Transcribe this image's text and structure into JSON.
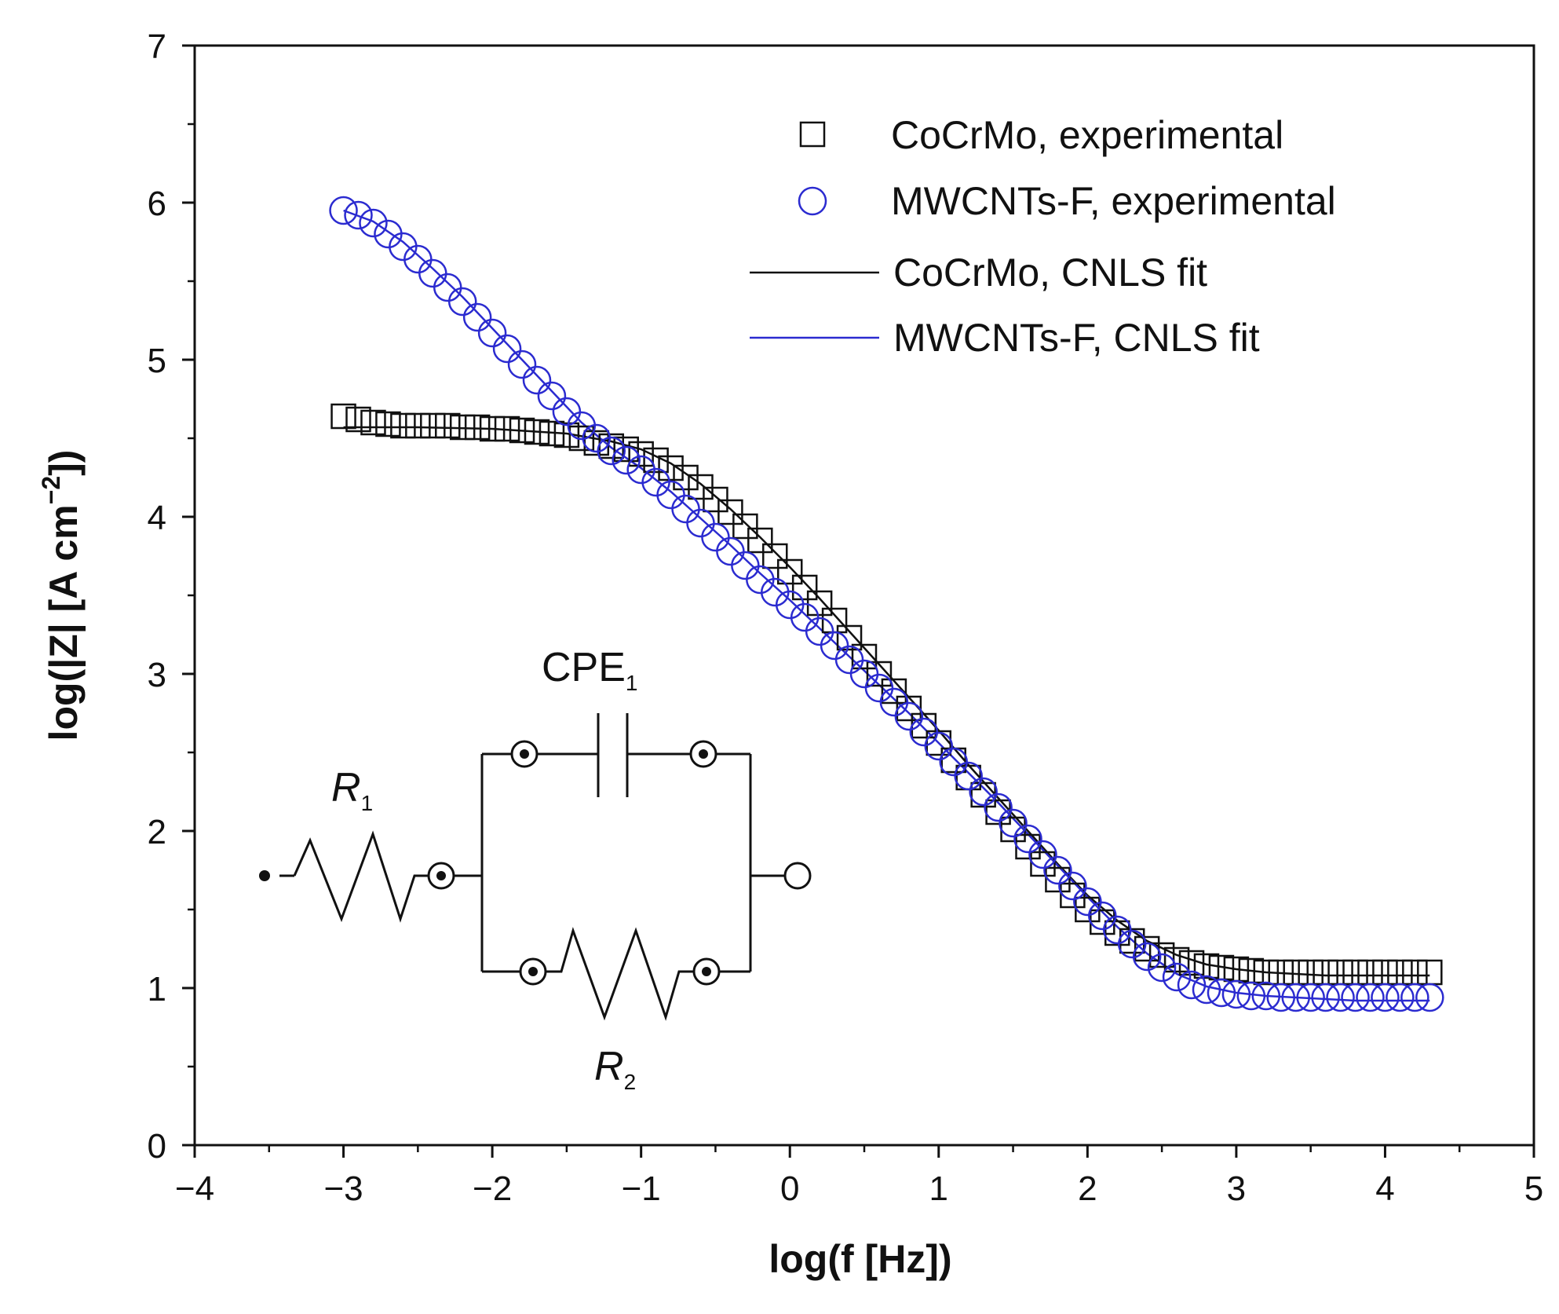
{
  "chart_data": {
    "type": "scatter",
    "xlabel": "log(f [Hz])",
    "ylabel_parts": [
      "log(|Z| [A cm",
      "−2",
      "])"
    ],
    "xlim": [
      -4,
      5
    ],
    "ylim": [
      0,
      7
    ],
    "x_ticks": [
      -4,
      -3,
      -2,
      -1,
      0,
      1,
      2,
      3,
      4,
      5
    ],
    "x_tick_labels": [
      "−4",
      "−3",
      "−2",
      "−1",
      "0",
      "1",
      "2",
      "3",
      "4",
      "5"
    ],
    "y_ticks": [
      0,
      1,
      2,
      3,
      4,
      5,
      6,
      7
    ],
    "y_tick_labels": [
      "0",
      "1",
      "2",
      "3",
      "4",
      "5",
      "6",
      "7"
    ],
    "grid": false,
    "legend_position": "top-right",
    "legend": [
      {
        "label": "CoCrMo, experimental",
        "marker": "square"
      },
      {
        "label": "MWCNTs-F, experimental",
        "marker": "circle"
      },
      {
        "label": "CoCrMo, CNLS fit",
        "marker": "line"
      },
      {
        "label": "MWCNTs-F, CNLS fit",
        "marker": "line"
      }
    ],
    "colors": {
      "cocrmo": "#111111",
      "mwcnts": "#2b2bd0"
    },
    "series": [
      {
        "name": "CoCrMo, experimental",
        "kind": "markers-square",
        "color": "#111111",
        "x": [
          -3.0,
          -2.9,
          -2.8,
          -2.7,
          -2.6,
          -2.5,
          -2.4,
          -2.3,
          -2.2,
          -2.1,
          -2.0,
          -1.9,
          -1.8,
          -1.7,
          -1.6,
          -1.5,
          -1.4,
          -1.3,
          -1.2,
          -1.1,
          -1.0,
          -0.9,
          -0.8,
          -0.7,
          -0.6,
          -0.5,
          -0.4,
          -0.3,
          -0.2,
          -0.1,
          0.0,
          0.1,
          0.2,
          0.3,
          0.4,
          0.5,
          0.6,
          0.7,
          0.8,
          0.9,
          1.0,
          1.1,
          1.2,
          1.3,
          1.4,
          1.5,
          1.6,
          1.7,
          1.8,
          1.9,
          2.0,
          2.1,
          2.2,
          2.3,
          2.4,
          2.5,
          2.6,
          2.7,
          2.8,
          2.9,
          3.0,
          3.1,
          3.2,
          3.3,
          3.4,
          3.5,
          3.6,
          3.7,
          3.8,
          3.9,
          4.0,
          4.1,
          4.2,
          4.3
        ],
        "y": [
          4.64,
          4.62,
          4.6,
          4.59,
          4.58,
          4.58,
          4.58,
          4.58,
          4.57,
          4.57,
          4.56,
          4.56,
          4.55,
          4.54,
          4.53,
          4.52,
          4.5,
          4.47,
          4.45,
          4.43,
          4.4,
          4.36,
          4.31,
          4.25,
          4.19,
          4.11,
          4.03,
          3.94,
          3.85,
          3.75,
          3.65,
          3.55,
          3.45,
          3.34,
          3.23,
          3.11,
          3.0,
          2.89,
          2.78,
          2.67,
          2.56,
          2.45,
          2.34,
          2.23,
          2.12,
          2.01,
          1.9,
          1.79,
          1.69,
          1.59,
          1.5,
          1.42,
          1.35,
          1.3,
          1.25,
          1.21,
          1.18,
          1.16,
          1.14,
          1.13,
          1.12,
          1.11,
          1.1,
          1.1,
          1.1,
          1.1,
          1.1,
          1.1,
          1.1,
          1.1,
          1.1,
          1.1,
          1.1,
          1.1
        ]
      },
      {
        "name": "MWCNTs-F, experimental",
        "kind": "markers-circle",
        "color": "#2b2bd0",
        "x": [
          -3.0,
          -2.9,
          -2.8,
          -2.7,
          -2.6,
          -2.5,
          -2.4,
          -2.3,
          -2.2,
          -2.1,
          -2.0,
          -1.9,
          -1.8,
          -1.7,
          -1.6,
          -1.5,
          -1.4,
          -1.3,
          -1.2,
          -1.1,
          -1.0,
          -0.9,
          -0.8,
          -0.7,
          -0.6,
          -0.5,
          -0.4,
          -0.3,
          -0.2,
          -0.1,
          0.0,
          0.1,
          0.2,
          0.3,
          0.4,
          0.5,
          0.6,
          0.7,
          0.8,
          0.9,
          1.0,
          1.1,
          1.2,
          1.3,
          1.4,
          1.5,
          1.6,
          1.7,
          1.8,
          1.9,
          2.0,
          2.1,
          2.2,
          2.3,
          2.4,
          2.5,
          2.6,
          2.7,
          2.8,
          2.9,
          3.0,
          3.1,
          3.2,
          3.3,
          3.4,
          3.5,
          3.6,
          3.7,
          3.8,
          3.9,
          4.0,
          4.1,
          4.2,
          4.3
        ],
        "y": [
          5.95,
          5.92,
          5.87,
          5.8,
          5.72,
          5.64,
          5.55,
          5.46,
          5.37,
          5.27,
          5.17,
          5.07,
          4.97,
          4.87,
          4.77,
          4.67,
          4.58,
          4.5,
          4.42,
          4.36,
          4.3,
          4.22,
          4.14,
          4.05,
          3.96,
          3.87,
          3.78,
          3.69,
          3.6,
          3.52,
          3.44,
          3.36,
          3.27,
          3.18,
          3.09,
          3.0,
          2.91,
          2.82,
          2.73,
          2.63,
          2.54,
          2.44,
          2.35,
          2.25,
          2.15,
          2.05,
          1.95,
          1.85,
          1.75,
          1.65,
          1.55,
          1.46,
          1.37,
          1.28,
          1.2,
          1.13,
          1.07,
          1.02,
          0.99,
          0.97,
          0.96,
          0.95,
          0.95,
          0.94,
          0.94,
          0.94,
          0.94,
          0.94,
          0.94,
          0.94,
          0.94,
          0.94,
          0.94,
          0.94
        ]
      },
      {
        "name": "CoCrMo, CNLS fit",
        "kind": "line",
        "color": "#111111",
        "x": [
          -3.0,
          -2.5,
          -2.0,
          -1.5,
          -1.2,
          -1.0,
          -0.8,
          -0.6,
          -0.4,
          -0.2,
          0.0,
          0.2,
          0.4,
          0.6,
          0.8,
          1.0,
          1.2,
          1.4,
          1.6,
          1.8,
          2.0,
          2.2,
          2.4,
          2.6,
          2.8,
          3.0,
          3.2,
          3.4,
          3.6,
          3.8,
          4.0,
          4.3
        ],
        "y": [
          4.57,
          4.57,
          4.56,
          4.53,
          4.48,
          4.43,
          4.34,
          4.21,
          4.05,
          3.87,
          3.68,
          3.48,
          3.27,
          3.06,
          2.85,
          2.64,
          2.42,
          2.21,
          2.0,
          1.79,
          1.59,
          1.43,
          1.3,
          1.21,
          1.15,
          1.12,
          1.1,
          1.09,
          1.08,
          1.08,
          1.08,
          1.08
        ]
      },
      {
        "name": "MWCNTs-F, CNLS fit",
        "kind": "line",
        "color": "#2b2bd0",
        "x": [
          -3.0,
          -2.8,
          -2.6,
          -2.4,
          -2.2,
          -2.0,
          -1.8,
          -1.6,
          -1.4,
          -1.2,
          -1.0,
          -0.8,
          -0.6,
          -0.4,
          -0.2,
          0.0,
          0.2,
          0.4,
          0.6,
          0.8,
          1.0,
          1.2,
          1.4,
          1.6,
          1.8,
          2.0,
          2.2,
          2.4,
          2.6,
          2.8,
          3.0,
          3.2,
          3.4,
          3.6,
          3.8,
          4.0,
          4.3
        ],
        "y": [
          5.95,
          5.88,
          5.75,
          5.58,
          5.4,
          5.2,
          5.0,
          4.8,
          4.6,
          4.44,
          4.31,
          4.16,
          3.99,
          3.82,
          3.64,
          3.47,
          3.29,
          3.11,
          2.93,
          2.75,
          2.56,
          2.37,
          2.18,
          1.98,
          1.78,
          1.58,
          1.39,
          1.22,
          1.09,
          1.01,
          0.97,
          0.95,
          0.94,
          0.93,
          0.92,
          0.92,
          0.92
        ]
      }
    ]
  },
  "circuit": {
    "r1": {
      "letter": "R",
      "sub": "1"
    },
    "r2": {
      "letter": "R",
      "sub": "2"
    },
    "cpe": {
      "letter": "CPE",
      "sub": "1"
    }
  }
}
